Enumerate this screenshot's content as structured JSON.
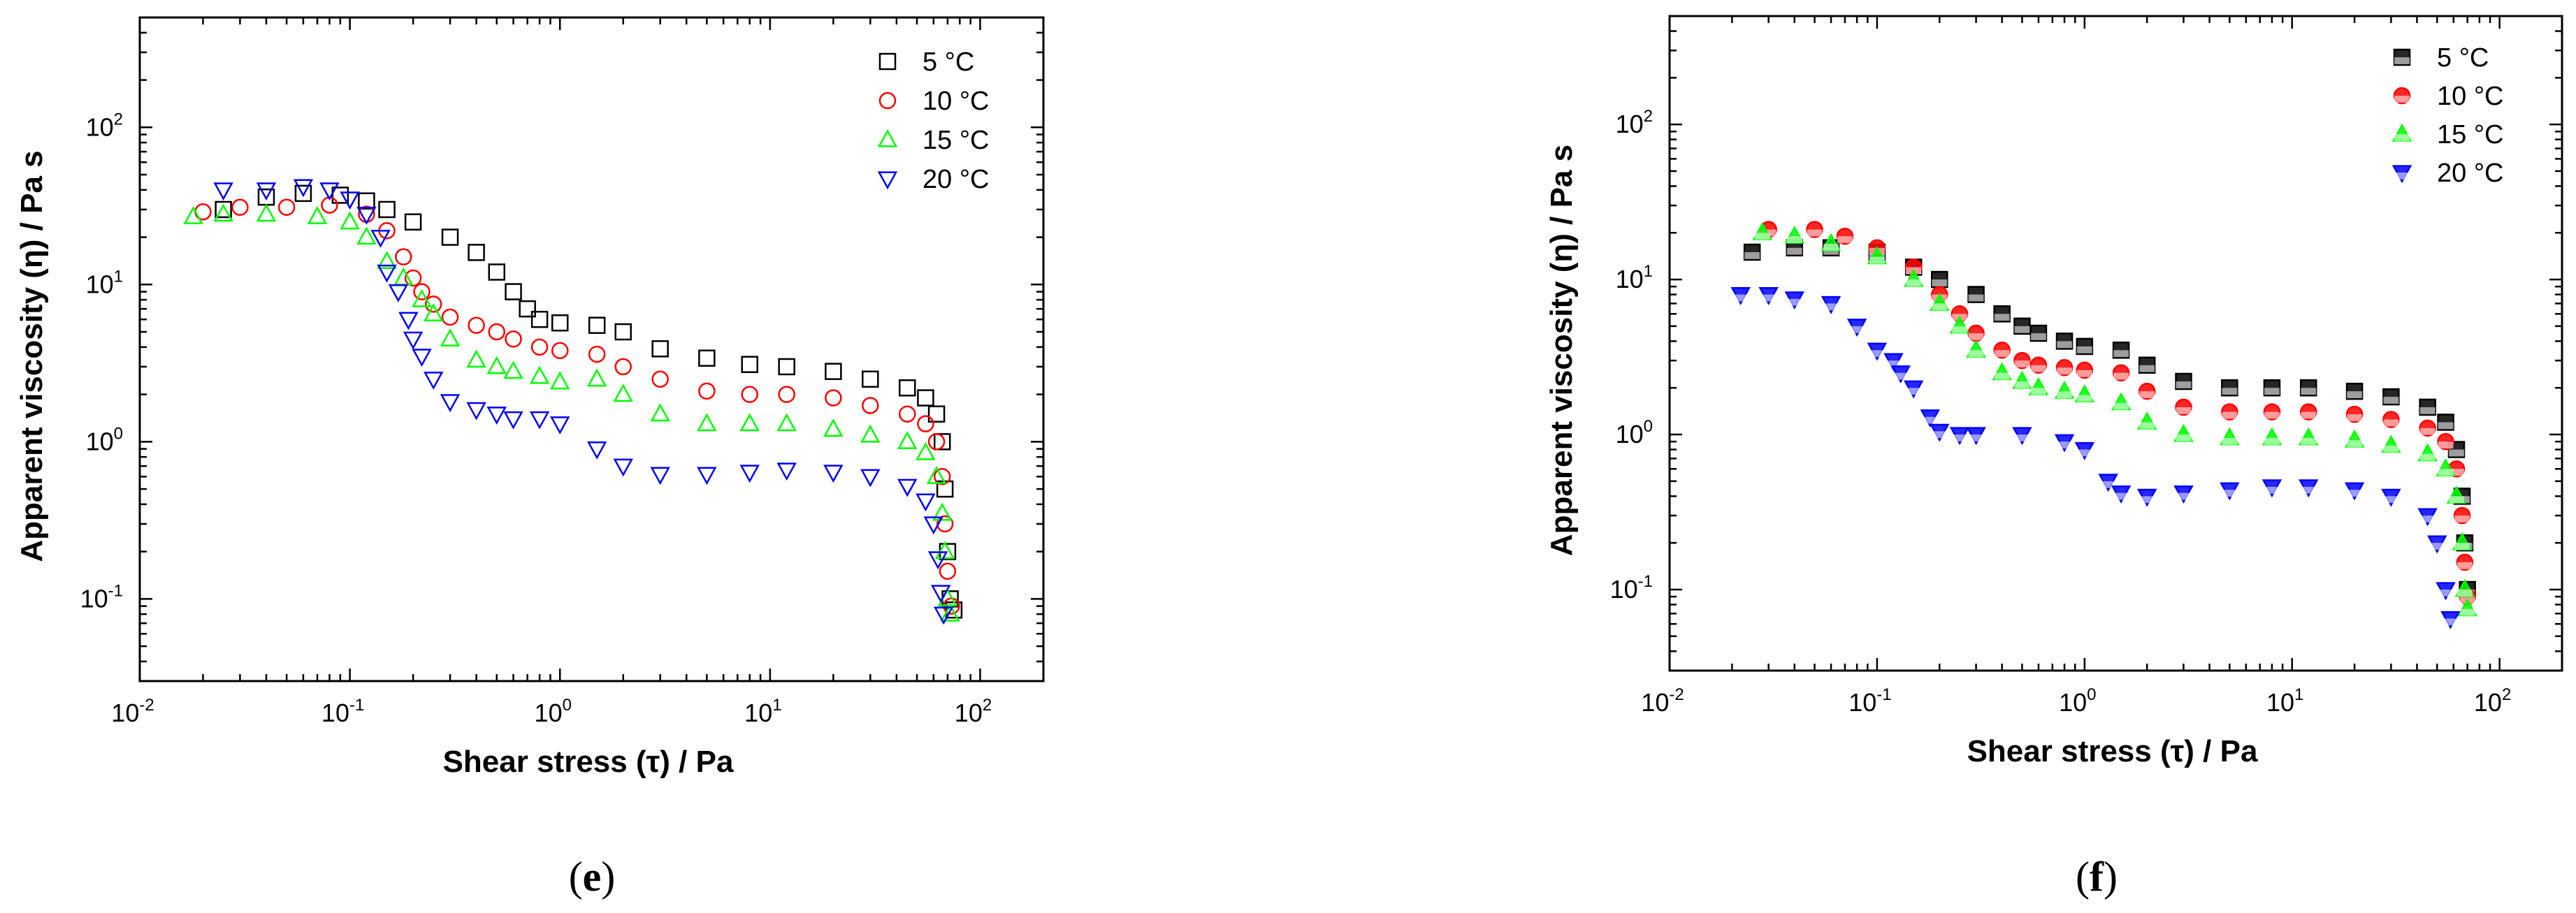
{
  "chart_data": [
    {
      "panel": "e",
      "type": "scatter",
      "panel_label": "e",
      "xlabel": "Shear stress (τ) / Pa",
      "ylabel": "Apparent viscosity (η) / Pa s",
      "xscale": "log",
      "yscale": "log",
      "xlim": [
        0.01,
        200
      ],
      "ylim": [
        0.03,
        500
      ],
      "x_ticks": [
        {
          "base": "10",
          "exp": "-2",
          "value": 0.01
        },
        {
          "base": "10",
          "exp": "-1",
          "value": 0.1
        },
        {
          "base": "10",
          "exp": "0",
          "value": 1
        },
        {
          "base": "10",
          "exp": "1",
          "value": 10
        },
        {
          "base": "10",
          "exp": "2",
          "value": 100
        }
      ],
      "y_ticks": [
        {
          "base": "10",
          "exp": "-1",
          "value": 0.1
        },
        {
          "base": "10",
          "exp": "0",
          "value": 1
        },
        {
          "base": "10",
          "exp": "1",
          "value": 10
        },
        {
          "base": "10",
          "exp": "2",
          "value": 100
        }
      ],
      "marker_fill": "open",
      "legend_position": "top-right",
      "series": [
        {
          "name": "5  °C",
          "marker": "square",
          "color": "#000000",
          "points": [
            [
              0.025,
              30
            ],
            [
              0.04,
              36
            ],
            [
              0.06,
              38
            ],
            [
              0.09,
              37
            ],
            [
              0.12,
              34
            ],
            [
              0.15,
              30
            ],
            [
              0.2,
              25
            ],
            [
              0.3,
              20
            ],
            [
              0.4,
              16
            ],
            [
              0.5,
              12
            ],
            [
              0.6,
              9
            ],
            [
              0.7,
              7
            ],
            [
              0.8,
              6
            ],
            [
              1.0,
              5.7
            ],
            [
              1.5,
              5.5
            ],
            [
              2,
              5
            ],
            [
              3,
              3.9
            ],
            [
              5,
              3.4
            ],
            [
              8,
              3.1
            ],
            [
              12,
              3.0
            ],
            [
              20,
              2.8
            ],
            [
              30,
              2.5
            ],
            [
              45,
              2.2
            ],
            [
              55,
              1.9
            ],
            [
              62,
              1.5
            ],
            [
              66,
              1.0
            ],
            [
              68,
              0.5
            ],
            [
              70,
              0.2
            ],
            [
              72,
              0.1
            ],
            [
              75,
              0.085
            ]
          ]
        },
        {
          "name": "10 °C",
          "marker": "circle",
          "color": "#ff0000",
          "points": [
            [
              0.02,
              29
            ],
            [
              0.03,
              31
            ],
            [
              0.05,
              31
            ],
            [
              0.08,
              32
            ],
            [
              0.12,
              28
            ],
            [
              0.15,
              22
            ],
            [
              0.18,
              15
            ],
            [
              0.2,
              11
            ],
            [
              0.22,
              9
            ],
            [
              0.25,
              7.5
            ],
            [
              0.3,
              6.2
            ],
            [
              0.4,
              5.5
            ],
            [
              0.5,
              5
            ],
            [
              0.6,
              4.5
            ],
            [
              0.8,
              4.0
            ],
            [
              1.0,
              3.8
            ],
            [
              1.5,
              3.6
            ],
            [
              2,
              3.0
            ],
            [
              3,
              2.5
            ],
            [
              5,
              2.1
            ],
            [
              8,
              2.0
            ],
            [
              12,
              2.0
            ],
            [
              20,
              1.9
            ],
            [
              30,
              1.7
            ],
            [
              45,
              1.5
            ],
            [
              55,
              1.3
            ],
            [
              62,
              1.0
            ],
            [
              66,
              0.6
            ],
            [
              68,
              0.3
            ],
            [
              70,
              0.15
            ],
            [
              73,
              0.09
            ]
          ]
        },
        {
          "name": "15 °C",
          "marker": "triangle-up",
          "color": "#00ff00",
          "points": [
            [
              0.018,
              27
            ],
            [
              0.025,
              28
            ],
            [
              0.04,
              28
            ],
            [
              0.07,
              27
            ],
            [
              0.1,
              25
            ],
            [
              0.12,
              20
            ],
            [
              0.15,
              14
            ],
            [
              0.18,
              11
            ],
            [
              0.22,
              8
            ],
            [
              0.25,
              6.5
            ],
            [
              0.3,
              4.5
            ],
            [
              0.4,
              3.3
            ],
            [
              0.5,
              3.0
            ],
            [
              0.6,
              2.8
            ],
            [
              0.8,
              2.6
            ],
            [
              1.0,
              2.4
            ],
            [
              1.5,
              2.5
            ],
            [
              2,
              2.0
            ],
            [
              3,
              1.5
            ],
            [
              5,
              1.3
            ],
            [
              8,
              1.3
            ],
            [
              12,
              1.3
            ],
            [
              20,
              1.2
            ],
            [
              30,
              1.1
            ],
            [
              45,
              1.0
            ],
            [
              55,
              0.85
            ],
            [
              62,
              0.6
            ],
            [
              66,
              0.35
            ],
            [
              68,
              0.2
            ],
            [
              70,
              0.1
            ],
            [
              72,
              0.08
            ]
          ]
        },
        {
          "name": "20 °C",
          "marker": "triangle-down",
          "color": "#0000ff",
          "points": [
            [
              0.025,
              40
            ],
            [
              0.04,
              40
            ],
            [
              0.06,
              42
            ],
            [
              0.08,
              40
            ],
            [
              0.1,
              35
            ],
            [
              0.12,
              28
            ],
            [
              0.14,
              20
            ],
            [
              0.15,
              12
            ],
            [
              0.17,
              9
            ],
            [
              0.19,
              6
            ],
            [
              0.2,
              4.5
            ],
            [
              0.22,
              3.5
            ],
            [
              0.25,
              2.5
            ],
            [
              0.3,
              1.8
            ],
            [
              0.4,
              1.6
            ],
            [
              0.5,
              1.5
            ],
            [
              0.6,
              1.4
            ],
            [
              0.8,
              1.4
            ],
            [
              1.0,
              1.3
            ],
            [
              1.5,
              0.9
            ],
            [
              2,
              0.7
            ],
            [
              3,
              0.62
            ],
            [
              5,
              0.62
            ],
            [
              8,
              0.64
            ],
            [
              12,
              0.66
            ],
            [
              20,
              0.64
            ],
            [
              30,
              0.6
            ],
            [
              45,
              0.52
            ],
            [
              55,
              0.42
            ],
            [
              60,
              0.3
            ],
            [
              63,
              0.18
            ],
            [
              65,
              0.11
            ],
            [
              67,
              0.08
            ]
          ]
        }
      ]
    },
    {
      "panel": "f",
      "type": "scatter",
      "panel_label": "f",
      "xlabel": "Shear stress (τ) / Pa",
      "ylabel": "Apparent viscosity (η) / Pa s",
      "xscale": "log",
      "yscale": "log",
      "xlim": [
        0.01,
        200
      ],
      "ylim": [
        0.03,
        500
      ],
      "x_ticks": [
        {
          "base": "10",
          "exp": "-2",
          "value": 0.01
        },
        {
          "base": "10",
          "exp": "-1",
          "value": 0.1
        },
        {
          "base": "10",
          "exp": "0",
          "value": 1
        },
        {
          "base": "10",
          "exp": "1",
          "value": 10
        },
        {
          "base": "10",
          "exp": "2",
          "value": 100
        }
      ],
      "y_ticks": [
        {
          "base": "10",
          "exp": "-1",
          "value": 0.1
        },
        {
          "base": "10",
          "exp": "0",
          "value": 1
        },
        {
          "base": "10",
          "exp": "1",
          "value": 10
        },
        {
          "base": "10",
          "exp": "2",
          "value": 100
        }
      ],
      "marker_fill": "half",
      "legend_position": "top-right",
      "series": [
        {
          "name": "5  °C",
          "marker": "square",
          "color": "#000000",
          "points": [
            [
              0.025,
              15
            ],
            [
              0.04,
              16
            ],
            [
              0.06,
              16
            ],
            [
              0.1,
              15
            ],
            [
              0.15,
              12
            ],
            [
              0.2,
              10
            ],
            [
              0.3,
              8
            ],
            [
              0.4,
              6
            ],
            [
              0.5,
              5
            ],
            [
              0.6,
              4.5
            ],
            [
              0.8,
              4.0
            ],
            [
              1.0,
              3.7
            ],
            [
              1.5,
              3.5
            ],
            [
              2,
              2.8
            ],
            [
              3,
              2.2
            ],
            [
              5,
              2.0
            ],
            [
              8,
              2.0
            ],
            [
              12,
              2.0
            ],
            [
              20,
              1.9
            ],
            [
              30,
              1.75
            ],
            [
              45,
              1.5
            ],
            [
              55,
              1.2
            ],
            [
              62,
              0.8
            ],
            [
              66,
              0.4
            ],
            [
              68,
              0.2
            ],
            [
              70,
              0.1
            ]
          ]
        },
        {
          "name": "10 °C",
          "marker": "circle",
          "color": "#ff0000",
          "points": [
            [
              0.03,
              21
            ],
            [
              0.05,
              21
            ],
            [
              0.07,
              19
            ],
            [
              0.1,
              16
            ],
            [
              0.15,
              12
            ],
            [
              0.2,
              8
            ],
            [
              0.25,
              6
            ],
            [
              0.3,
              4.5
            ],
            [
              0.4,
              3.5
            ],
            [
              0.5,
              3.0
            ],
            [
              0.6,
              2.8
            ],
            [
              0.8,
              2.7
            ],
            [
              1.0,
              2.6
            ],
            [
              1.5,
              2.5
            ],
            [
              2,
              1.9
            ],
            [
              3,
              1.5
            ],
            [
              5,
              1.4
            ],
            [
              8,
              1.4
            ],
            [
              12,
              1.4
            ],
            [
              20,
              1.35
            ],
            [
              30,
              1.25
            ],
            [
              45,
              1.1
            ],
            [
              55,
              0.9
            ],
            [
              62,
              0.6
            ],
            [
              66,
              0.3
            ],
            [
              68,
              0.15
            ],
            [
              70,
              0.09
            ]
          ]
        },
        {
          "name": "15 °C",
          "marker": "triangle-up",
          "color": "#00ff00",
          "points": [
            [
              0.028,
              20
            ],
            [
              0.04,
              19
            ],
            [
              0.06,
              17
            ],
            [
              0.1,
              14
            ],
            [
              0.15,
              10
            ],
            [
              0.2,
              7
            ],
            [
              0.25,
              5
            ],
            [
              0.3,
              3.5
            ],
            [
              0.4,
              2.5
            ],
            [
              0.5,
              2.2
            ],
            [
              0.6,
              2.0
            ],
            [
              0.8,
              1.9
            ],
            [
              1.0,
              1.8
            ],
            [
              1.5,
              1.6
            ],
            [
              2,
              1.2
            ],
            [
              3,
              1.0
            ],
            [
              5,
              0.95
            ],
            [
              8,
              0.95
            ],
            [
              12,
              0.95
            ],
            [
              20,
              0.92
            ],
            [
              30,
              0.85
            ],
            [
              45,
              0.75
            ],
            [
              55,
              0.6
            ],
            [
              62,
              0.4
            ],
            [
              66,
              0.2
            ],
            [
              68,
              0.1
            ],
            [
              70,
              0.075
            ]
          ]
        },
        {
          "name": "20 °C",
          "marker": "triangle-down",
          "color": "#0000ff",
          "points": [
            [
              0.022,
              8
            ],
            [
              0.03,
              8
            ],
            [
              0.04,
              7.5
            ],
            [
              0.06,
              7
            ],
            [
              0.08,
              5
            ],
            [
              0.1,
              3.5
            ],
            [
              0.12,
              3
            ],
            [
              0.13,
              2.5
            ],
            [
              0.15,
              2
            ],
            [
              0.18,
              1.3
            ],
            [
              0.2,
              1.05
            ],
            [
              0.25,
              1.0
            ],
            [
              0.3,
              1.0
            ],
            [
              0.5,
              1.0
            ],
            [
              0.8,
              0.9
            ],
            [
              1.0,
              0.8
            ],
            [
              1.3,
              0.5
            ],
            [
              1.5,
              0.42
            ],
            [
              2,
              0.4
            ],
            [
              3,
              0.42
            ],
            [
              5,
              0.44
            ],
            [
              8,
              0.46
            ],
            [
              12,
              0.46
            ],
            [
              20,
              0.44
            ],
            [
              30,
              0.4
            ],
            [
              45,
              0.3
            ],
            [
              50,
              0.2
            ],
            [
              55,
              0.1
            ],
            [
              58,
              0.065
            ]
          ]
        }
      ]
    }
  ]
}
